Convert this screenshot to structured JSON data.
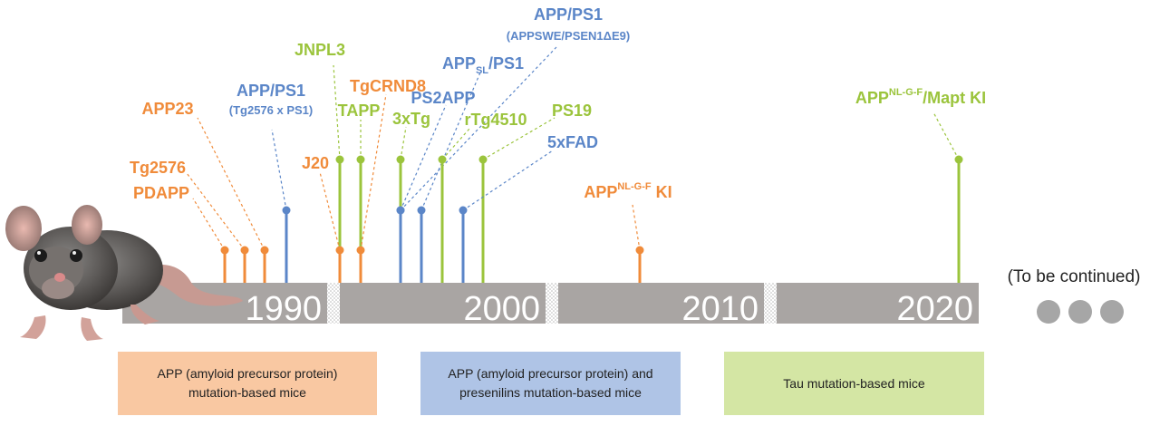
{
  "colors": {
    "app": "#F08B3A",
    "app_ps": "#5B86C8",
    "tau": "#9BC43C",
    "axis": "#A9A5A3",
    "app_box": "#F9C8A2",
    "app_ps_box": "#AFC4E6",
    "tau_box": "#D4E6A4"
  },
  "decades": [
    "1990",
    "2000",
    "2010",
    "2020"
  ],
  "continued_label": "(To be continued)",
  "mouse_icon": "mouse-photo-icon",
  "models": [
    {
      "id": "pdapp",
      "label": "PDAPP",
      "category": "app"
    },
    {
      "id": "tg2576",
      "label": "Tg2576",
      "category": "app"
    },
    {
      "id": "app23",
      "label": "APP23",
      "category": "app"
    },
    {
      "id": "app-ps1-tg",
      "label": "APP/PS1",
      "sublabel": "(Tg2576 x PS1)",
      "category": "app_ps"
    },
    {
      "id": "jnpl3",
      "label": "JNPL3",
      "category": "tau"
    },
    {
      "id": "j20",
      "label": "J20",
      "category": "app"
    },
    {
      "id": "tapp",
      "label": "TAPP",
      "category": "tau"
    },
    {
      "id": "tgcrnd8",
      "label": "TgCRND8",
      "category": "app"
    },
    {
      "id": "3xtg",
      "label": "3xTg",
      "category": "tau"
    },
    {
      "id": "ps2app",
      "label": "PS2APP",
      "category": "app_ps"
    },
    {
      "id": "appsl-ps1",
      "label_main": "APP",
      "label_sub": "SL",
      "label_tail": "/PS1",
      "category": "app_ps"
    },
    {
      "id": "app-ps1-swe",
      "label": "APP/PS1",
      "sublabel": "(APPSWE/PSEN1ΔE9)",
      "category": "app_ps"
    },
    {
      "id": "rtg4510",
      "label": "rTg4510",
      "category": "tau"
    },
    {
      "id": "ps19",
      "label": "PS19",
      "category": "tau"
    },
    {
      "id": "5xfad",
      "label": "5xFAD",
      "category": "app_ps"
    },
    {
      "id": "app-nlgf-ki",
      "label_main": "APP",
      "label_sup": "NL-G-F",
      "label_tail": " KI",
      "category": "app"
    },
    {
      "id": "app-nlgf-mapt-ki",
      "label_main": "APP",
      "label_sup": "NL-G-F",
      "label_tail": "/Mapt KI",
      "category": "tau"
    }
  ],
  "legend": [
    {
      "category": "app",
      "text_line1": "APP (amyloid precursor protein)",
      "text_line2": "mutation-based mice"
    },
    {
      "category": "app_ps",
      "text_line1": "APP (amyloid precursor protein) and",
      "text_line2": "presenilins mutation-based mice"
    },
    {
      "category": "tau",
      "text_line1": "Tau mutation-based mice",
      "text_line2": ""
    }
  ]
}
